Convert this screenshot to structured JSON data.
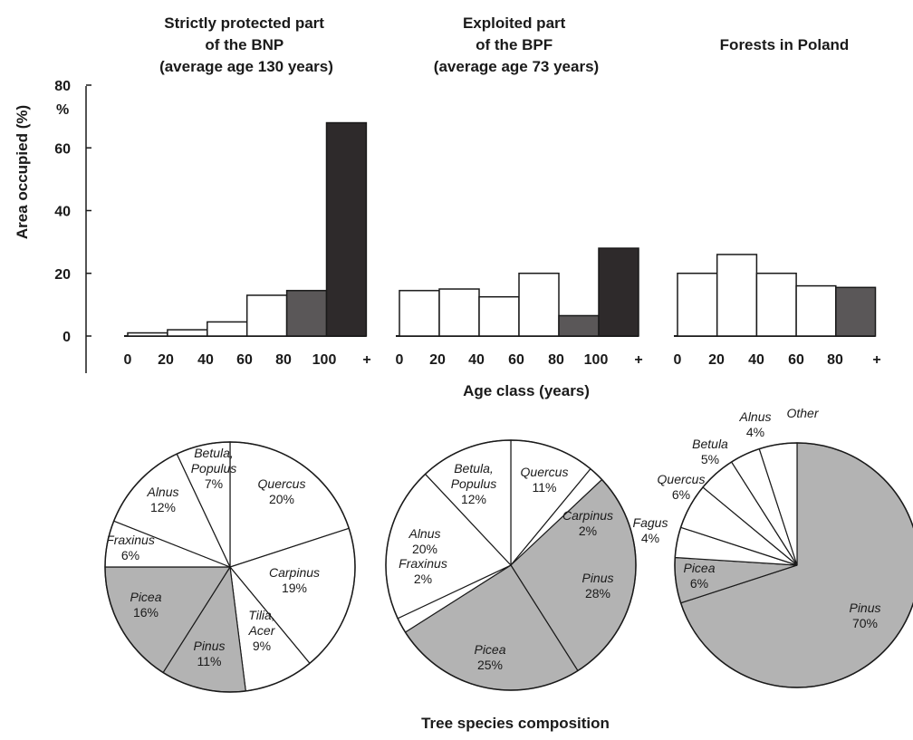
{
  "chart_data": [
    {
      "type": "bar",
      "title": [
        "Strictly protected part",
        "of the BNP",
        "(average age 130 years)"
      ],
      "tick_labels": [
        "0",
        "20",
        "40",
        "60",
        "80",
        "100",
        "+"
      ],
      "values": [
        1,
        2,
        4.5,
        13,
        14.5,
        68
      ],
      "fill_colors": [
        "#ffffff",
        "#ffffff",
        "#ffffff",
        "#ffffff",
        "#5a5758",
        "#2e2a2b"
      ],
      "ylim": [
        0,
        80
      ]
    },
    {
      "type": "bar",
      "title": [
        "Exploited part",
        "of the BPF",
        "(average age 73 years)"
      ],
      "tick_labels": [
        "0",
        "20",
        "40",
        "60",
        "80",
        "100",
        "+"
      ],
      "values": [
        14.5,
        15,
        12.5,
        20,
        6.5,
        28
      ],
      "fill_colors": [
        "#ffffff",
        "#ffffff",
        "#ffffff",
        "#ffffff",
        "#5a5758",
        "#2e2a2b"
      ],
      "ylim": [
        0,
        80
      ]
    },
    {
      "type": "bar",
      "title": [
        "Forests in Poland"
      ],
      "tick_labels": [
        "0",
        "20",
        "40",
        "60",
        "80",
        "+"
      ],
      "values": [
        20,
        26,
        20,
        16,
        15.5
      ],
      "fill_colors": [
        "#ffffff",
        "#ffffff",
        "#ffffff",
        "#ffffff",
        "#5a5758"
      ],
      "ylim": [
        0,
        80
      ]
    },
    {
      "type": "pie",
      "slices": [
        {
          "label": [
            "Quercus"
          ],
          "percent_label": "20%",
          "value": 20,
          "color": "#ffffff"
        },
        {
          "label": [
            "Carpinus"
          ],
          "percent_label": "19%",
          "value": 19,
          "color": "#ffffff"
        },
        {
          "label": [
            "Tilia,",
            "Acer"
          ],
          "percent_label": "9%",
          "value": 9,
          "color": "#ffffff"
        },
        {
          "label": [
            "Pinus"
          ],
          "percent_label": "11%",
          "value": 11,
          "color": "#b3b3b3"
        },
        {
          "label": [
            "Picea"
          ],
          "percent_label": "16%",
          "value": 16,
          "color": "#b3b3b3"
        },
        {
          "label": [
            "Fraxinus"
          ],
          "percent_label": "6%",
          "value": 6,
          "color": "#ffffff"
        },
        {
          "label": [
            "Alnus"
          ],
          "percent_label": "12%",
          "value": 12,
          "color": "#ffffff"
        },
        {
          "label": [
            "Betula,",
            "Populus"
          ],
          "percent_label": "7%",
          "value": 7,
          "color": "#ffffff"
        }
      ]
    },
    {
      "type": "pie",
      "slices": [
        {
          "label": [
            "Quercus"
          ],
          "percent_label": "11%",
          "value": 11,
          "color": "#ffffff"
        },
        {
          "label": [
            "Carpinus"
          ],
          "percent_label": "2%",
          "value": 2,
          "color": "#ffffff"
        },
        {
          "label": [
            "Pinus"
          ],
          "percent_label": "28%",
          "value": 28,
          "color": "#b3b3b3"
        },
        {
          "label": [
            "Picea"
          ],
          "percent_label": "25%",
          "value": 25,
          "color": "#b3b3b3"
        },
        {
          "label": [
            "Fraxinus"
          ],
          "percent_label": "2%",
          "value": 2,
          "color": "#ffffff"
        },
        {
          "label": [
            "Alnus"
          ],
          "percent_label": "20%",
          "value": 20,
          "color": "#ffffff"
        },
        {
          "label": [
            "Betula,",
            "Populus"
          ],
          "percent_label": "12%",
          "value": 12,
          "color": "#ffffff"
        }
      ]
    },
    {
      "type": "pie",
      "slices": [
        {
          "label": [
            "Pinus"
          ],
          "percent_label": "70%",
          "value": 70,
          "color": "#b3b3b3"
        },
        {
          "label": [
            "Picea"
          ],
          "percent_label": "6%",
          "value": 6,
          "color": "#b3b3b3"
        },
        {
          "label": [
            "Fagus"
          ],
          "percent_label": "4%",
          "value": 4,
          "color": "#ffffff"
        },
        {
          "label": [
            "Quercus"
          ],
          "percent_label": "6%",
          "value": 6,
          "color": "#ffffff"
        },
        {
          "label": [
            "Betula"
          ],
          "percent_label": "5%",
          "value": 5,
          "color": "#ffffff"
        },
        {
          "label": [
            "Alnus"
          ],
          "percent_label": "4%",
          "value": 4,
          "color": "#ffffff"
        },
        {
          "label": [
            "Other"
          ],
          "percent_label": "",
          "value": 5,
          "color": "#ffffff"
        }
      ]
    }
  ],
  "y_axis": {
    "label": "Area occupied (%)",
    "ticks": [
      "0",
      "20",
      "40",
      "60",
      "80"
    ],
    "unit_label": "%"
  },
  "x_axis_label": "Age class (years)",
  "pie_caption": "Tree species composition"
}
